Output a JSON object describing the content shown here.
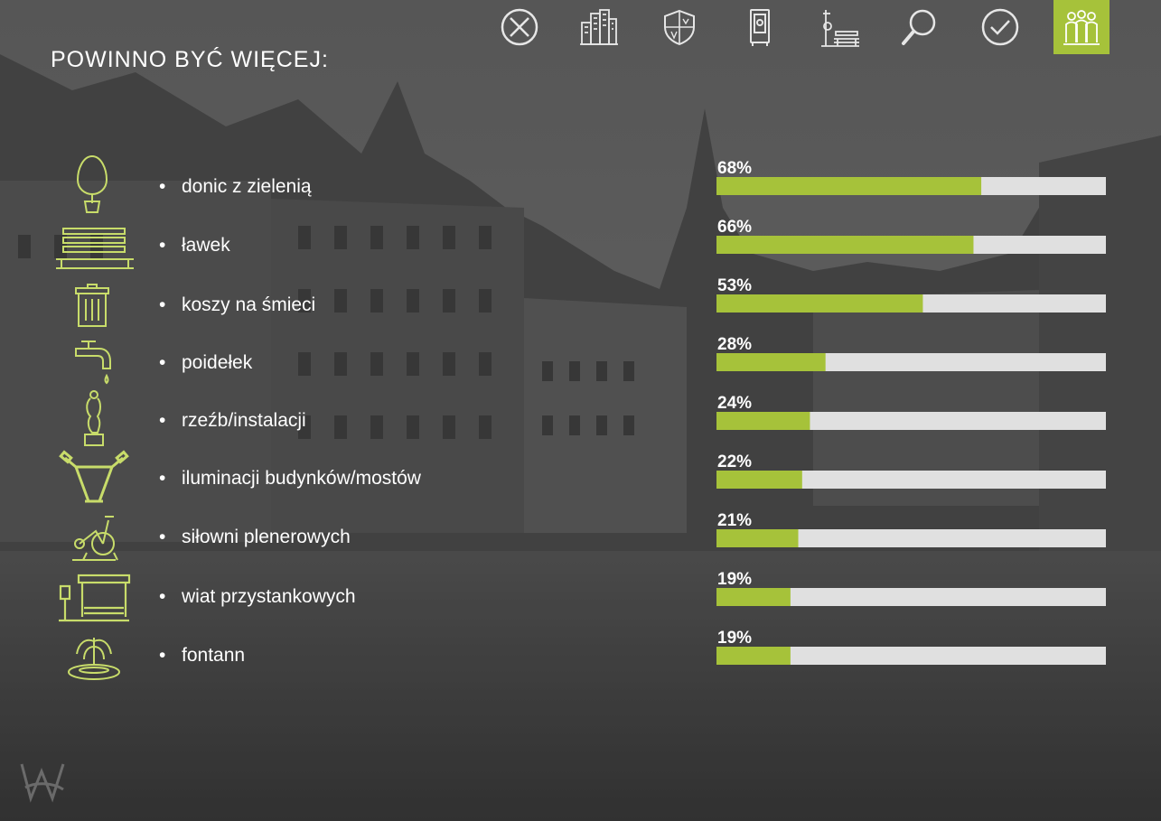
{
  "title": "POWINNO BYĆ WIĘCEJ:",
  "nav": {
    "items": [
      {
        "icon": "circle-x-icon"
      },
      {
        "icon": "city-buildings-icon"
      },
      {
        "icon": "shield-icon"
      },
      {
        "icon": "signboard-icon"
      },
      {
        "icon": "bench-clock-icon"
      },
      {
        "icon": "magnifier-icon"
      },
      {
        "icon": "circle-check-icon"
      },
      {
        "icon": "people-group-icon",
        "active": true
      }
    ]
  },
  "colors": {
    "accent": "#a6c23a",
    "track": "#e0e0e0",
    "text": "#ffffff",
    "icon": "#c8dc6a"
  },
  "categories": [
    {
      "label": "donic z zielenią",
      "icon": "tree-planter-icon"
    },
    {
      "label": "ławek",
      "icon": "bench-icon"
    },
    {
      "label": "koszy na śmieci",
      "icon": "trash-bin-icon"
    },
    {
      "label": "poidełek",
      "icon": "water-tap-icon"
    },
    {
      "label": "rzeźb/instalacji",
      "icon": "sculpture-icon"
    },
    {
      "label": "iluminacji budynków/mostów",
      "icon": "floodlight-icon"
    },
    {
      "label": "siłowni plenerowych",
      "icon": "outdoor-gym-icon"
    },
    {
      "label": "wiat przystankowych",
      "icon": "bus-shelter-icon"
    },
    {
      "label": "fontann",
      "icon": "fountain-icon"
    }
  ],
  "chart_data": {
    "type": "bar",
    "orientation": "horizontal",
    "categories": [
      "donic z zielenią",
      "ławek",
      "koszy na śmieci",
      "poidełek",
      "rzeźb/instalacji",
      "iluminacji budynków/mostów",
      "siłowni plenerowych",
      "wiat przystankowych",
      "fontann"
    ],
    "values": [
      68,
      66,
      53,
      28,
      24,
      22,
      21,
      19,
      19
    ],
    "value_labels": [
      "68%",
      "66%",
      "53%",
      "28%",
      "24%",
      "22%",
      "21%",
      "19%",
      "19%"
    ],
    "title": "POWINNO BYĆ WIĘCEJ:",
    "xlim": [
      0,
      100
    ],
    "grid": false,
    "legend": "none"
  }
}
